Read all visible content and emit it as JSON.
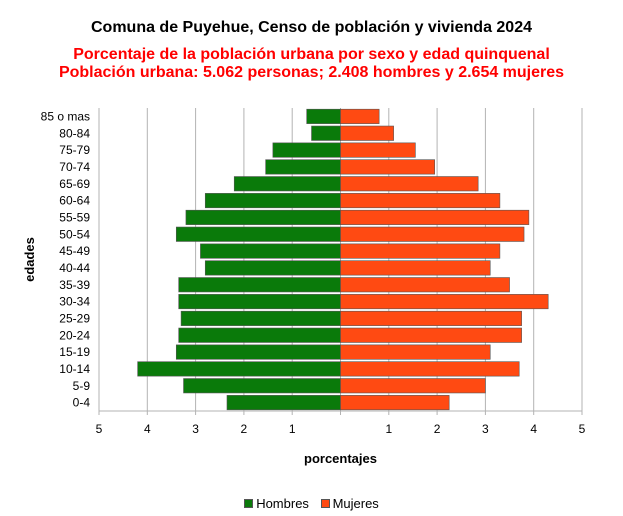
{
  "chart_data": {
    "type": "bar",
    "orientation": "horizontal-population-pyramid",
    "title": "Comuna de Puyehue, Censo de población y vivienda 2024",
    "subtitle_lines": [
      "Porcentaje de la población urbana por sexo y edad quinquenal",
      "Población urbana: 5.062 personas; 2.408 hombres y 2.654 mujeres"
    ],
    "xlabel": "porcentajes",
    "ylabel": "edades",
    "xlim": [
      -5,
      5
    ],
    "x_ticks": [
      -5,
      -4,
      -3,
      -2,
      -1,
      1,
      2,
      3,
      4,
      5
    ],
    "x_tick_labels": [
      "5",
      "4",
      "3",
      "2",
      "1",
      "1",
      "2",
      "3",
      "4",
      "5"
    ],
    "grid": true,
    "legend_position": "bottom-center",
    "categories": [
      "85 o mas",
      "80-84",
      "75-79",
      "70-74",
      "65-69",
      "60-64",
      "55-59",
      "50-54",
      "45-49",
      "40-44",
      "35-39",
      "30-34",
      "25-29",
      "20-24",
      "15-19",
      "10-14",
      "5-9",
      "0-4"
    ],
    "series": [
      {
        "name": "Hombres",
        "color": "#0a7a0a",
        "values": [
          0.7,
          0.6,
          1.4,
          1.55,
          2.2,
          2.8,
          3.2,
          3.4,
          2.9,
          2.8,
          3.35,
          3.35,
          3.3,
          3.35,
          3.4,
          4.2,
          3.25,
          2.35
        ]
      },
      {
        "name": "Mujeres",
        "color": "#ff4a12",
        "values": [
          0.8,
          1.1,
          1.55,
          1.95,
          2.85,
          3.3,
          3.9,
          3.8,
          3.3,
          3.1,
          3.5,
          4.3,
          3.75,
          3.75,
          3.1,
          3.7,
          3.0,
          2.25
        ]
      }
    ]
  },
  "colors": {
    "subtitle": "#ff0000",
    "grid": "#b3b3b3",
    "axis": "#b3b3b3",
    "bar_border": "#555555"
  }
}
